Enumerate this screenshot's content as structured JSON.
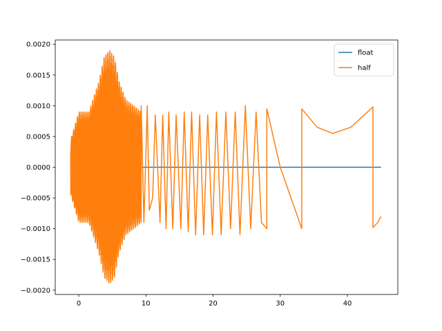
{
  "chart_data": {
    "type": "line",
    "title": "",
    "xlabel": "",
    "ylabel": "",
    "xlim": [
      -3.5,
      47.5
    ],
    "ylim": [
      -0.00207,
      0.00207
    ],
    "x_ticks": [
      0,
      10,
      20,
      30,
      40
    ],
    "x_tick_labels": [
      "0",
      "10",
      "20",
      "30",
      "40"
    ],
    "y_ticks": [
      -0.002,
      -0.0015,
      -0.001,
      -0.0005,
      0.0,
      0.0005,
      0.001,
      0.0015,
      0.002
    ],
    "y_tick_labels": [
      "−0.0020",
      "−0.0015",
      "−0.0010",
      "−0.0005",
      "0.0000",
      "0.0005",
      "0.0010",
      "0.0015",
      "0.0020"
    ],
    "grid": false,
    "legend_placement": "upper-right",
    "series": [
      {
        "name": "float",
        "color": "#1f77b4",
        "x": [
          -1.2,
          45
        ],
        "y": [
          0.0,
          0.0
        ]
      },
      {
        "name": "half",
        "color": "#ff7f0e",
        "x": [
          9.3,
          9.7,
          10.2,
          10.5,
          11.0,
          11.4,
          12.1,
          12.5,
          13.0,
          13.4,
          14.0,
          14.5,
          15.2,
          15.7,
          16.3,
          16.8,
          17.4,
          18.0,
          18.6,
          19.2,
          19.9,
          20.5,
          21.2,
          21.9,
          22.6,
          23.3,
          24.0,
          24.8,
          25.6,
          26.4,
          27.2,
          28.0,
          28.0,
          30.0,
          33.2,
          33.2,
          35.5,
          37.8,
          40.5,
          43.8,
          43.8,
          44.5,
          45.0
        ],
        "y": [
          0.001,
          -0.0009,
          0.001,
          -0.0007,
          -0.0005,
          0.00085,
          -0.0009,
          0.00085,
          -0.001,
          0.0009,
          -0.001,
          0.00085,
          -0.001,
          0.0009,
          -0.00105,
          0.0009,
          -0.0011,
          0.00085,
          -0.0011,
          0.00085,
          -0.0011,
          0.0009,
          -0.0011,
          0.0009,
          -0.001,
          0.0009,
          -0.0011,
          0.001,
          -0.001,
          0.0009,
          -0.0009,
          -0.001,
          0.00095,
          0.0,
          -0.001,
          0.00095,
          0.00065,
          0.00055,
          0.00065,
          0.00098,
          -0.00098,
          -0.0009,
          -0.0008
        ]
      }
    ],
    "half_dense_region": {
      "x_range": [
        -1.2,
        9.3
      ],
      "envelope": [
        [
          -1.2,
          0.00045
        ],
        [
          0.0,
          0.0009
        ],
        [
          1.5,
          0.0009
        ],
        [
          3.0,
          0.0014
        ],
        [
          3.8,
          0.0018
        ],
        [
          4.6,
          0.0019
        ],
        [
          5.3,
          0.0018
        ],
        [
          6.0,
          0.0014
        ],
        [
          7.0,
          0.0011
        ],
        [
          8.2,
          0.001
        ],
        [
          9.3,
          0.0009
        ]
      ]
    }
  }
}
